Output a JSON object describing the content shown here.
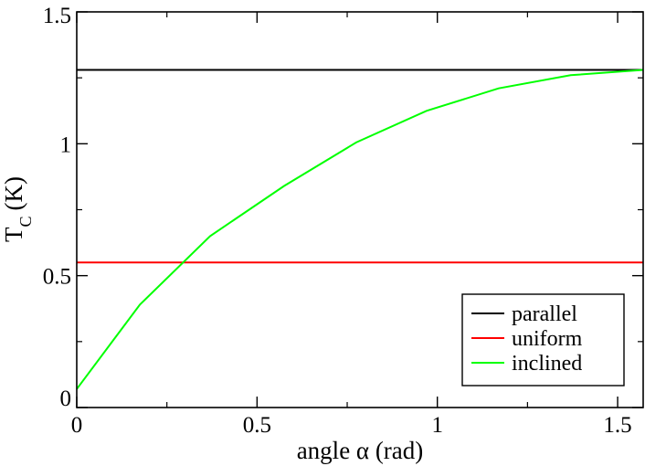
{
  "chart_data": {
    "type": "line",
    "xlabel": "angle α (rad)",
    "ylabel_main": "T",
    "ylabel_sub": "C",
    "ylabel_unit": "(K)",
    "xlim": [
      0,
      1.5708
    ],
    "ylim": [
      0,
      1.5
    ],
    "xticks": [
      0,
      0.5,
      1,
      1.5
    ],
    "xtick_labels": [
      "0",
      "0.5",
      "1",
      "1.5"
    ],
    "yticks": [
      0,
      0.5,
      1,
      1.5
    ],
    "ytick_labels": [
      "0",
      "0.5",
      "1",
      "1.5"
    ],
    "grid": false,
    "legend_position": "bottom-right",
    "series": [
      {
        "name": "parallel",
        "color": "#000000",
        "x": [
          0,
          1.5708
        ],
        "y": [
          1.28,
          1.28
        ]
      },
      {
        "name": "uniform",
        "color": "#ff0000",
        "x": [
          0,
          1.5708
        ],
        "y": [
          0.55,
          0.55
        ]
      },
      {
        "name": "inclined",
        "color": "#00ff00",
        "x": [
          0,
          0.175,
          0.37,
          0.575,
          0.775,
          0.97,
          1.17,
          1.37,
          1.5708
        ],
        "y": [
          0.07,
          0.39,
          0.65,
          0.84,
          1.005,
          1.125,
          1.21,
          1.26,
          1.28
        ]
      }
    ]
  }
}
